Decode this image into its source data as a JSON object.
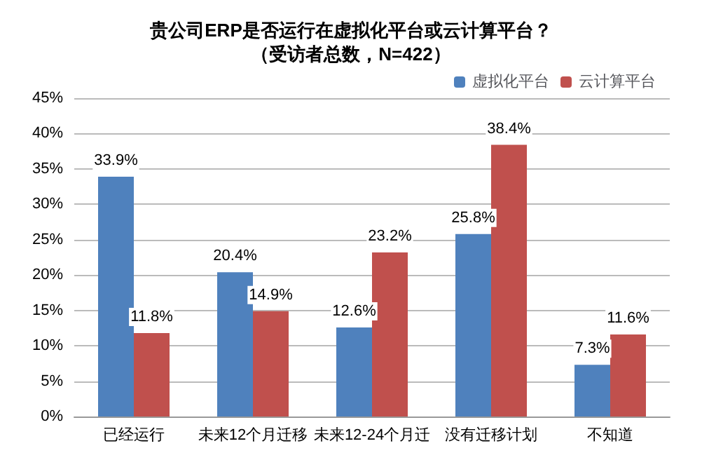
{
  "chart_data": {
    "type": "bar",
    "title": "贵公司ERP是否运行在虚拟化平台或云计算平台？",
    "subtitle": "（受访者总数，N=422）",
    "categories": [
      "已经运行",
      "未来12个月迁移",
      "未来12-24个月迁",
      "没有迁移计划",
      "不知道"
    ],
    "series": [
      {
        "name": "虚拟化平台",
        "color": "#4f81bd",
        "values": [
          33.9,
          20.4,
          12.6,
          25.8,
          7.3
        ],
        "value_labels": [
          "33.9%",
          "20.4%",
          "12.6%",
          "25.8%",
          "7.3%"
        ]
      },
      {
        "name": "云计算平台",
        "color": "#c0504d",
        "values": [
          11.8,
          14.9,
          23.2,
          38.4,
          11.6
        ],
        "value_labels": [
          "11.8%",
          "14.9%",
          "23.2%",
          "38.4%",
          "11.6%"
        ]
      }
    ],
    "ylim": [
      0,
      45
    ],
    "yticks": [
      {
        "value": 0,
        "label": "0%"
      },
      {
        "value": 5,
        "label": "5%"
      },
      {
        "value": 10,
        "label": "10%"
      },
      {
        "value": 15,
        "label": "15%"
      },
      {
        "value": 20,
        "label": "20%"
      },
      {
        "value": 25,
        "label": "25%"
      },
      {
        "value": 30,
        "label": "30%"
      },
      {
        "value": 35,
        "label": "35%"
      },
      {
        "value": 40,
        "label": "40%"
      },
      {
        "value": 45,
        "label": "45%"
      }
    ],
    "grid": "y",
    "legend": "top right"
  }
}
